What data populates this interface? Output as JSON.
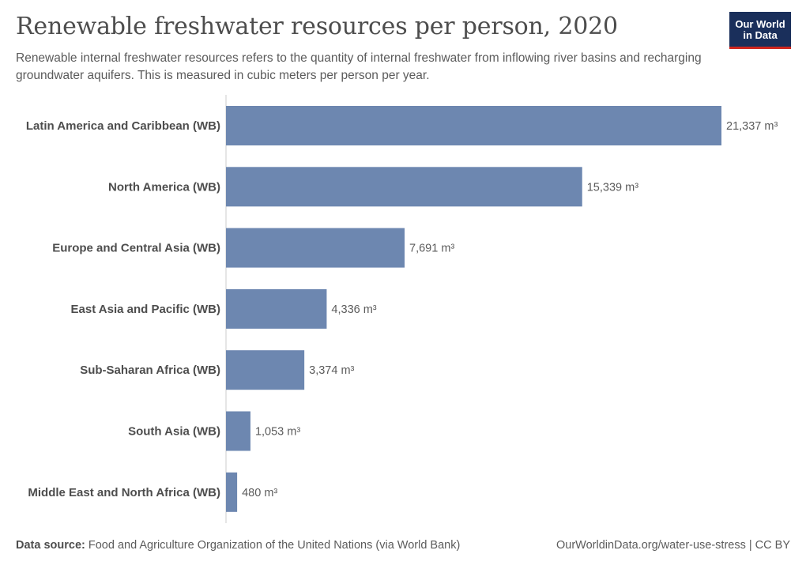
{
  "title": "Renewable freshwater resources per person, 2020",
  "subtitle": "Renewable internal freshwater resources refers to the quantity of internal freshwater from inflowing river basins and recharging groundwater aquifers. This is measured in cubic meters per person per year.",
  "logo": {
    "line1": "Our World",
    "line2": "in Data"
  },
  "footer": {
    "source_label": "Data source:",
    "source_text": "Food and Agriculture Organization of the United Nations (via World Bank)",
    "credit": "OurWorldinData.org/water-use-stress | CC BY"
  },
  "colors": {
    "bar": "#6d87b0",
    "axis": "#cccccc",
    "logo_bg": "#1a2f5b",
    "logo_accent": "#ce261e"
  },
  "chart_data": {
    "type": "bar",
    "orientation": "horizontal",
    "unit": "m³",
    "categories": [
      "Latin America and Caribbean (WB)",
      "North America (WB)",
      "Europe and Central Asia (WB)",
      "East Asia and Pacific (WB)",
      "Sub-Saharan Africa (WB)",
      "South Asia (WB)",
      "Middle East and North Africa (WB)"
    ],
    "values": [
      21337,
      15339,
      7691,
      4336,
      3374,
      1053,
      480
    ],
    "labels": [
      "21,337 m³",
      "15,339 m³",
      "7,691 m³",
      "4,336 m³",
      "3,374 m³",
      "1,053 m³",
      "480 m³"
    ],
    "xlim": [
      0,
      21337
    ],
    "grid": false,
    "legend": "none"
  }
}
